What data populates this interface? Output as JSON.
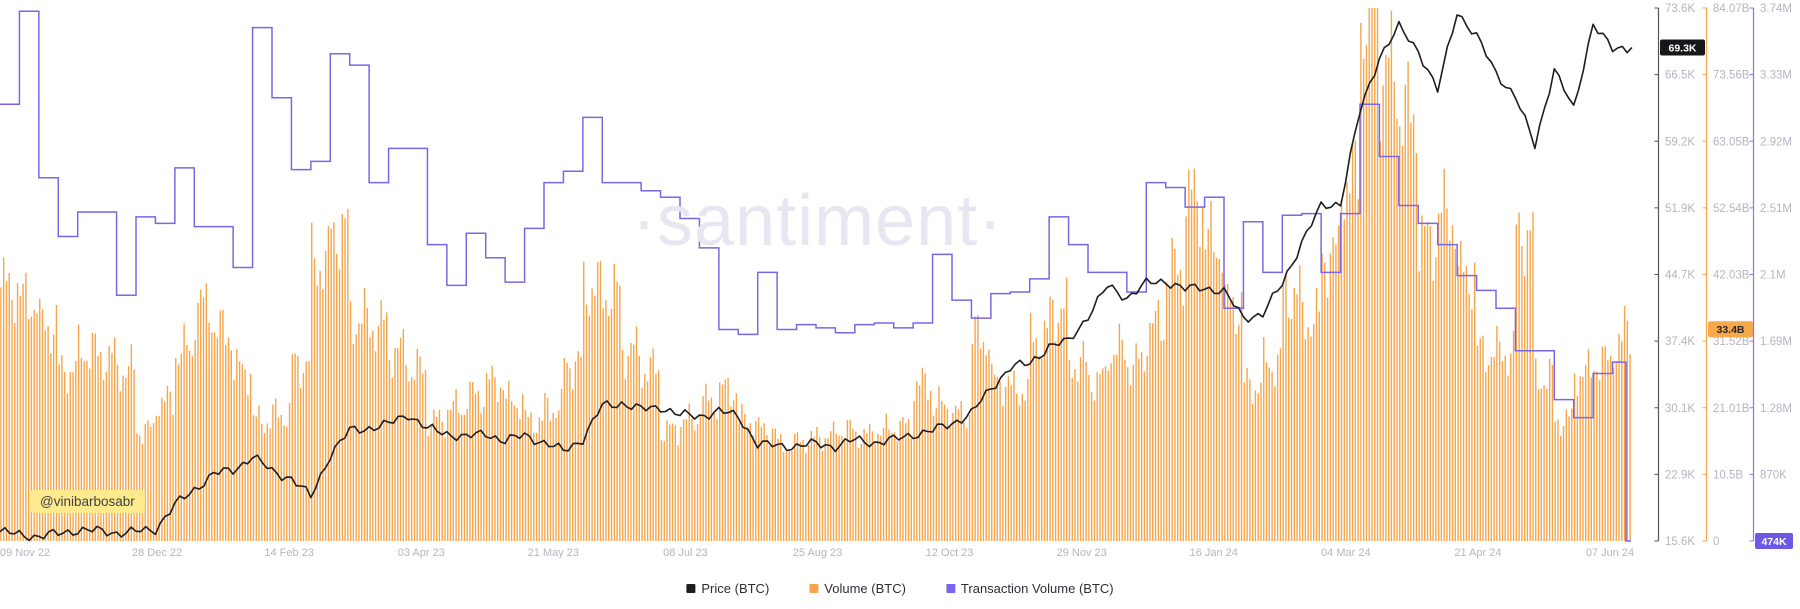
{
  "watermark": "·santiment·",
  "annotation": "@vinibarbosabr",
  "legend": [
    {
      "label": "Price (BTC)",
      "color": "#1d1d1f"
    },
    {
      "label": "Volume (BTC)",
      "color": "#f6a54b"
    },
    {
      "label": "Transaction Volume (BTC)",
      "color": "#7a66e8"
    }
  ],
  "axes": {
    "price": {
      "color": "#55555c",
      "label_color": "#b5b5c3",
      "tick_labels": [
        "73.6K",
        "66.5K",
        "59.2K",
        "51.9K",
        "44.7K",
        "37.4K",
        "30.1K",
        "22.9K",
        "15.6K"
      ],
      "current": "69.3K",
      "badge_bg": "#17171a",
      "badge_fg": "#ffffff"
    },
    "volume": {
      "color": "#f6a54b",
      "label_color": "#b5b5c3",
      "tick_labels": [
        "84.07B",
        "73.56B",
        "63.05B",
        "52.54B",
        "42.03B",
        "31.52B",
        "21.01B",
        "10.5B",
        "0"
      ],
      "current": "33.4B",
      "badge_bg": "#f7a84b",
      "badge_fg": "#26282c"
    },
    "transaction": {
      "color": "#8576ea",
      "label_color": "#b5b5c3",
      "tick_labels": [
        "3.74M",
        "3.33M",
        "2.92M",
        "2.51M",
        "2.1M",
        "1.69M",
        "1.28M",
        "870K",
        ""
      ],
      "current": "474K",
      "badge_bg": "#6c59e6",
      "badge_fg": "#ffffff"
    }
  },
  "x_axis": {
    "labels": [
      "09 Nov 22",
      "28 Dec 22",
      "14 Feb 23",
      "03 Apr 23",
      "21 May 23",
      "08 Jul 23",
      "25 Aug 23",
      "12 Oct 23",
      "29 Nov 23",
      "16 Jan 24",
      "04 Mar 24",
      "21 Apr 24",
      "07 Jun 24"
    ]
  },
  "chart_data": {
    "type": "mixed",
    "x_range": [
      "09 Nov 22",
      "07 Jun 24"
    ],
    "x_tick_labels": [
      "09 Nov 22",
      "28 Dec 22",
      "14 Feb 23",
      "03 Apr 23",
      "21 May 23",
      "08 Jul 23",
      "25 Aug 23",
      "12 Oct 23",
      "29 Nov 23",
      "16 Jan 24",
      "04 Mar 24",
      "21 Apr 24",
      "07 Jun 24"
    ],
    "interval": "weekly",
    "legend_position": "bottom",
    "grid": false,
    "series": [
      {
        "name": "Price (BTC)",
        "type": "line",
        "axis": "price",
        "color": "#1d1d1f",
        "unit": "thousand USD",
        "y_range": [
          15.6,
          73.6
        ],
        "weekly_values": [
          16.6,
          16.3,
          16.1,
          16.4,
          16.8,
          16.7,
          16.5,
          16.6,
          16.9,
          19.5,
          21.2,
          22.9,
          23.3,
          24.8,
          23.2,
          22.4,
          20.4,
          25.0,
          27.6,
          27.9,
          28.3,
          29.4,
          27.8,
          27.3,
          26.9,
          27.3,
          26.5,
          27.1,
          26.3,
          25.4,
          26.7,
          30.3,
          30.6,
          29.9,
          30.2,
          29.3,
          29.2,
          29.7,
          29.2,
          26.1,
          26.0,
          25.9,
          26.2,
          25.9,
          26.6,
          26.3,
          26.6,
          27.2,
          27.6,
          28.4,
          29.5,
          32.2,
          34.5,
          34.9,
          36.8,
          37.3,
          40.1,
          43.3,
          42.1,
          43.6,
          43.9,
          43.0,
          43.2,
          42.7,
          39.9,
          40.3,
          43.6,
          48.1,
          52.0,
          52.4,
          62.3,
          68.3,
          71.5,
          69.0,
          64.6,
          73.2,
          70.5,
          66.5,
          64.0,
          58.6,
          67.0,
          62.5,
          72.0,
          69.0
        ],
        "last_value": 69.3
      },
      {
        "name": "Volume (BTC)",
        "type": "bar",
        "axis": "volume",
        "color": "#f6a54b",
        "unit": "billion USD",
        "y_range": [
          0,
          84.07
        ],
        "weekly_values": [
          40,
          38,
          34,
          27,
          30,
          29,
          27,
          17.5,
          22,
          30,
          37,
          33,
          27,
          19,
          20,
          28,
          44,
          49,
          35,
          34,
          30,
          27,
          19,
          21,
          23,
          25,
          22,
          19,
          21,
          28,
          40,
          39,
          30,
          27,
          17.5,
          19,
          22,
          23.8,
          19,
          17.5,
          15.1,
          15.9,
          16.5,
          17.5,
          16.7,
          17.5,
          18,
          24.6,
          21.4,
          20,
          32.2,
          25,
          23.8,
          32,
          36.4,
          28,
          25.4,
          30.1,
          28,
          34,
          42.7,
          53.8,
          47,
          37.2,
          24.6,
          28,
          39.1,
          35,
          45,
          57,
          83.7,
          74,
          67.2,
          47.4,
          51.4,
          42,
          29.8,
          29.8,
          48.6,
          25.7,
          19.1,
          26.5,
          28.2,
          31
        ],
        "last_value": 33.4
      },
      {
        "name": "Transaction Volume (BTC)",
        "type": "step_line",
        "axis": "transaction",
        "color": "#7a66e8",
        "unit": "million BTC",
        "y_range": [
          0.474,
          3.74
        ],
        "weekly_values": [
          3.15,
          3.72,
          2.7,
          2.34,
          2.49,
          2.49,
          1.98,
          2.46,
          2.42,
          2.76,
          2.4,
          2.4,
          2.15,
          3.62,
          3.19,
          2.75,
          2.8,
          3.46,
          3.39,
          2.67,
          2.88,
          2.88,
          2.29,
          2.04,
          2.36,
          2.21,
          2.06,
          2.39,
          2.67,
          2.74,
          3.07,
          2.67,
          2.67,
          2.62,
          2.58,
          2.45,
          2.27,
          1.77,
          1.74,
          2.12,
          1.77,
          1.8,
          1.78,
          1.75,
          1.8,
          1.81,
          1.78,
          1.81,
          2.23,
          1.95,
          1.84,
          1.99,
          2.0,
          2.08,
          2.46,
          2.29,
          2.12,
          2.12,
          2.0,
          2.67,
          2.64,
          2.52,
          2.58,
          1.9,
          2.43,
          2.12,
          2.47,
          2.48,
          2.12,
          2.48,
          3.15,
          2.83,
          2.53,
          2.42,
          2.29,
          2.1,
          2.01,
          1.9,
          1.64,
          1.64,
          1.34,
          1.23,
          1.5,
          1.57
        ],
        "last_value": 0.474
      }
    ]
  }
}
